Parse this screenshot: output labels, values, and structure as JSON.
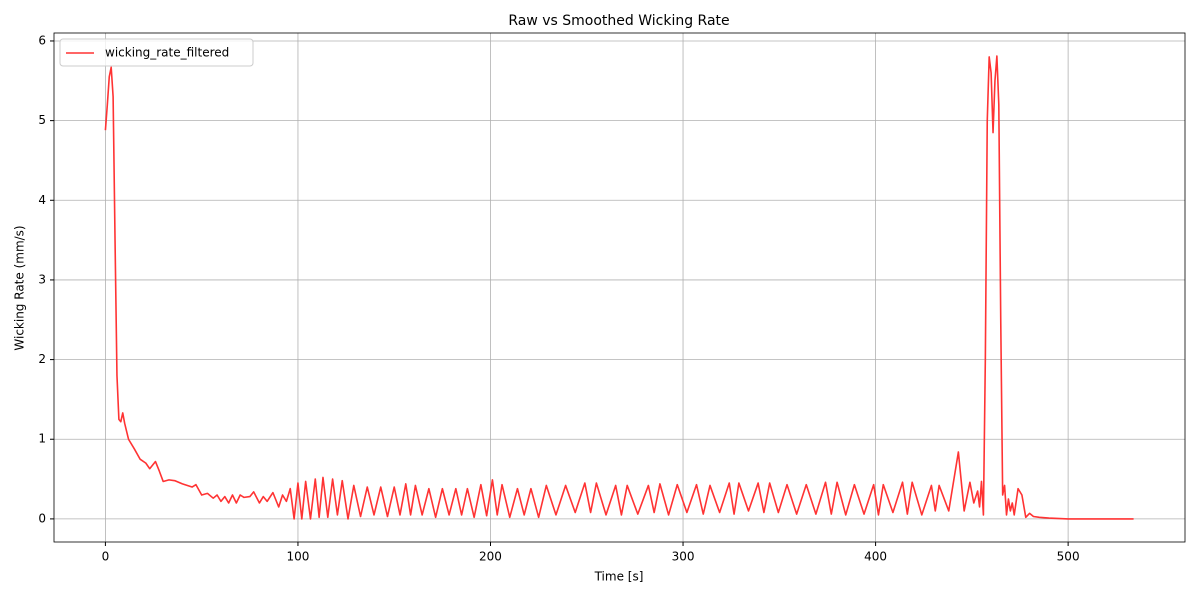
{
  "chart_data": {
    "type": "line",
    "title": "Raw vs Smoothed Wicking Rate",
    "x_label": "Time [s]",
    "y_label": "Wicking Rate (mm/s)",
    "x": [
      0,
      1,
      2,
      3,
      4,
      5,
      6,
      7,
      8,
      9,
      10,
      12,
      15,
      18,
      21,
      23,
      26,
      28,
      30,
      33,
      36,
      40,
      45,
      47,
      50,
      53,
      56,
      58,
      60,
      62,
      64,
      66,
      68,
      70,
      72,
      75,
      77,
      80,
      82,
      84,
      87,
      90,
      92,
      94,
      96,
      98,
      100,
      102,
      104,
      106.5,
      109,
      111,
      113,
      115.5,
      118,
      120.5,
      123,
      126,
      129,
      132.5,
      136,
      139.5,
      143,
      146.5,
      150,
      153,
      156,
      158.5,
      161,
      164.5,
      168,
      171.5,
      175,
      178.5,
      182,
      185,
      188,
      191.5,
      195,
      198,
      201,
      203.5,
      206,
      210,
      214,
      217.5,
      221,
      225,
      229,
      234,
      239,
      244,
      249,
      252,
      255,
      260,
      265,
      268,
      271,
      276.5,
      282,
      285,
      288,
      292.5,
      297,
      302,
      307,
      310.5,
      314,
      319,
      324,
      326.5,
      329,
      334,
      339,
      342,
      345,
      349.5,
      354,
      359,
      364,
      369,
      374,
      377,
      380,
      384.5,
      389,
      394,
      399,
      401.5,
      404,
      409,
      414,
      416.5,
      419,
      424,
      429,
      431,
      433,
      438,
      443,
      446,
      449,
      451,
      453,
      454,
      455,
      456,
      457,
      458,
      459,
      460,
      461,
      462,
      463,
      464,
      465,
      466,
      467,
      468,
      469,
      470,
      471,
      472,
      474,
      476,
      478,
      480,
      482,
      485,
      490,
      500,
      534
    ],
    "series": [
      {
        "name": "wicking_rate_filtered",
        "color": "#ff3333",
        "values": [
          4.88,
          5.2,
          5.55,
          5.67,
          5.3,
          3.5,
          1.8,
          1.25,
          1.22,
          1.33,
          1.2,
          1.0,
          0.88,
          0.75,
          0.7,
          0.63,
          0.72,
          0.6,
          0.47,
          0.49,
          0.48,
          0.44,
          0.4,
          0.43,
          0.3,
          0.32,
          0.26,
          0.3,
          0.22,
          0.28,
          0.2,
          0.3,
          0.2,
          0.3,
          0.27,
          0.28,
          0.34,
          0.2,
          0.28,
          0.22,
          0.33,
          0.15,
          0.3,
          0.22,
          0.38,
          0.0,
          0.45,
          0.0,
          0.47,
          0.0,
          0.5,
          0.02,
          0.52,
          0.02,
          0.5,
          0.05,
          0.48,
          0.0,
          0.42,
          0.03,
          0.4,
          0.05,
          0.4,
          0.03,
          0.4,
          0.05,
          0.44,
          0.05,
          0.42,
          0.05,
          0.38,
          0.02,
          0.38,
          0.05,
          0.38,
          0.05,
          0.38,
          0.02,
          0.43,
          0.04,
          0.49,
          0.05,
          0.43,
          0.02,
          0.38,
          0.05,
          0.38,
          0.02,
          0.42,
          0.05,
          0.42,
          0.08,
          0.45,
          0.08,
          0.45,
          0.05,
          0.42,
          0.05,
          0.42,
          0.06,
          0.42,
          0.08,
          0.44,
          0.05,
          0.43,
          0.08,
          0.43,
          0.06,
          0.42,
          0.08,
          0.45,
          0.06,
          0.45,
          0.1,
          0.45,
          0.08,
          0.45,
          0.08,
          0.43,
          0.06,
          0.43,
          0.06,
          0.46,
          0.06,
          0.46,
          0.05,
          0.43,
          0.06,
          0.43,
          0.05,
          0.43,
          0.08,
          0.46,
          0.06,
          0.46,
          0.05,
          0.42,
          0.1,
          0.42,
          0.1,
          0.84,
          0.1,
          0.46,
          0.2,
          0.35,
          0.15,
          0.47,
          0.05,
          2.0,
          5.0,
          5.8,
          5.6,
          4.85,
          5.5,
          5.81,
          5.2,
          2.5,
          0.3,
          0.42,
          0.05,
          0.25,
          0.1,
          0.2,
          0.05,
          0.38,
          0.3,
          0.02,
          0.07,
          0.03,
          0.02,
          0.01,
          0.0,
          0.0
        ]
      }
    ],
    "xlim": [
      -26.7,
      560.7
    ],
    "ylim": [
      -0.29,
      6.1
    ],
    "xticks": [
      0,
      100,
      200,
      300,
      400,
      500
    ],
    "yticks": [
      0,
      1,
      2,
      3,
      4,
      5,
      6
    ],
    "grid": true,
    "legend": "upper left"
  }
}
